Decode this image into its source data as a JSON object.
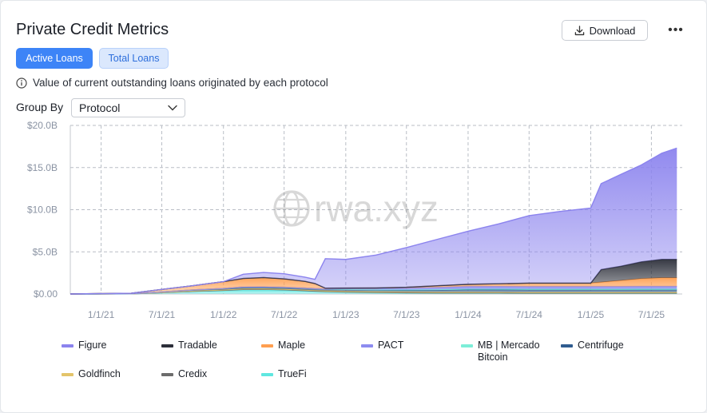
{
  "header": {
    "title": "Private Credit Metrics",
    "download_label": "Download",
    "more_label": "•••"
  },
  "tabs": [
    {
      "label": "Active Loans",
      "active": true
    },
    {
      "label": "Total Loans",
      "active": false
    }
  ],
  "info_text": "Value of current outstanding loans originated by each protocol",
  "group_by": {
    "label": "Group By",
    "value": "Protocol"
  },
  "watermark": "rwa.xyz",
  "chart_data": {
    "type": "area",
    "stacked": true,
    "x_tick_labels": [
      "1/1/21",
      "7/1/21",
      "1/1/22",
      "7/1/22",
      "1/1/23",
      "7/1/23",
      "1/1/24",
      "7/1/24",
      "1/1/25",
      "7/1/25"
    ],
    "y_tick_labels": [
      "$0.00",
      "$5.0B",
      "$10.0B",
      "$15.0B",
      "$20.0B"
    ],
    "ylim": [
      0,
      20
    ],
    "y_unit": "billion USD",
    "grid": true,
    "legend_position": "bottom",
    "x_dates": [
      "2020-10-01",
      "2021-04-01",
      "2021-07-01",
      "2021-10-01",
      "2022-01-01",
      "2022-03-01",
      "2022-05-01",
      "2022-07-01",
      "2022-09-01",
      "2022-10-01",
      "2022-11-01",
      "2023-01-01",
      "2023-04-01",
      "2023-07-01",
      "2023-10-01",
      "2024-01-01",
      "2024-04-01",
      "2024-07-01",
      "2024-10-01",
      "2025-01-01",
      "2025-02-01",
      "2025-04-01",
      "2025-06-01",
      "2025-08-01",
      "2025-09-15"
    ],
    "series": [
      {
        "name": "TrueFi",
        "color": "#5fe7e0",
        "values": [
          0,
          0.02,
          0.15,
          0.3,
          0.4,
          0.5,
          0.5,
          0.45,
          0.35,
          0.3,
          0.25,
          0.2,
          0.15,
          0.12,
          0.1,
          0.1,
          0.1,
          0.08,
          0.08,
          0.08,
          0.08,
          0.08,
          0.08,
          0.08,
          0.08
        ]
      },
      {
        "name": "Credix",
        "color": "#6c6c6c",
        "values": [
          0,
          0,
          0.01,
          0.02,
          0.03,
          0.04,
          0.05,
          0.05,
          0.05,
          0.04,
          0.04,
          0.03,
          0.03,
          0.03,
          0.02,
          0.02,
          0.02,
          0.02,
          0.02,
          0.02,
          0.02,
          0.02,
          0.02,
          0.02,
          0.02
        ]
      },
      {
        "name": "Goldfinch",
        "color": "#e3c46a",
        "values": [
          0,
          0.01,
          0.03,
          0.06,
          0.08,
          0.1,
          0.1,
          0.1,
          0.1,
          0.1,
          0.1,
          0.1,
          0.1,
          0.1,
          0.1,
          0.1,
          0.09,
          0.09,
          0.09,
          0.09,
          0.09,
          0.09,
          0.09,
          0.09,
          0.09
        ]
      },
      {
        "name": "Centrifuge",
        "color": "#2f5c8f",
        "values": [
          0,
          0.01,
          0.05,
          0.1,
          0.15,
          0.2,
          0.2,
          0.2,
          0.2,
          0.2,
          0.2,
          0.2,
          0.2,
          0.2,
          0.25,
          0.3,
          0.3,
          0.3,
          0.3,
          0.3,
          0.3,
          0.3,
          0.3,
          0.3,
          0.3
        ]
      },
      {
        "name": "MB | Mercado Bitcoin",
        "color": "#7deed8",
        "values": [
          0,
          0,
          0,
          0,
          0,
          0,
          0,
          0,
          0,
          0,
          0,
          0.02,
          0.03,
          0.05,
          0.06,
          0.08,
          0.1,
          0.1,
          0.1,
          0.1,
          0.1,
          0.1,
          0.12,
          0.12,
          0.12
        ]
      },
      {
        "name": "PACT",
        "color": "#8d8cf0",
        "values": [
          0,
          0,
          0,
          0,
          0,
          0,
          0,
          0,
          0,
          0,
          0,
          0.1,
          0.15,
          0.2,
          0.25,
          0.3,
          0.3,
          0.3,
          0.3,
          0.3,
          0.3,
          0.3,
          0.3,
          0.3,
          0.3
        ]
      },
      {
        "name": "Maple",
        "color": "#ff9f50",
        "values": [
          0,
          0.05,
          0.3,
          0.5,
          0.8,
          1.0,
          1.1,
          1.0,
          0.8,
          0.6,
          0.1,
          0.05,
          0.05,
          0.1,
          0.2,
          0.25,
          0.3,
          0.4,
          0.4,
          0.4,
          0.5,
          0.7,
          0.9,
          1.0,
          1.0
        ]
      },
      {
        "name": "Tradable",
        "color": "#2c2f3a",
        "values": [
          0,
          0,
          0,
          0,
          0,
          0,
          0,
          0,
          0,
          0,
          0,
          0,
          0,
          0,
          0,
          0,
          0,
          0,
          0,
          0,
          1.5,
          1.7,
          2.0,
          2.2,
          2.2
        ]
      },
      {
        "name": "Figure",
        "color": "#8b83ee",
        "values": [
          0,
          0,
          0,
          0,
          0,
          0.5,
          0.6,
          0.6,
          0.5,
          0.5,
          3.5,
          3.4,
          3.9,
          4.7,
          5.5,
          6.3,
          7.1,
          8.0,
          8.5,
          8.9,
          10.2,
          10.9,
          11.5,
          12.6,
          13.2
        ]
      }
    ],
    "legend_order": [
      "Figure",
      "Tradable",
      "Maple",
      "PACT",
      "MB | Mercado Bitcoin",
      "Centrifuge",
      "Goldfinch",
      "Credix",
      "TrueFi"
    ]
  }
}
